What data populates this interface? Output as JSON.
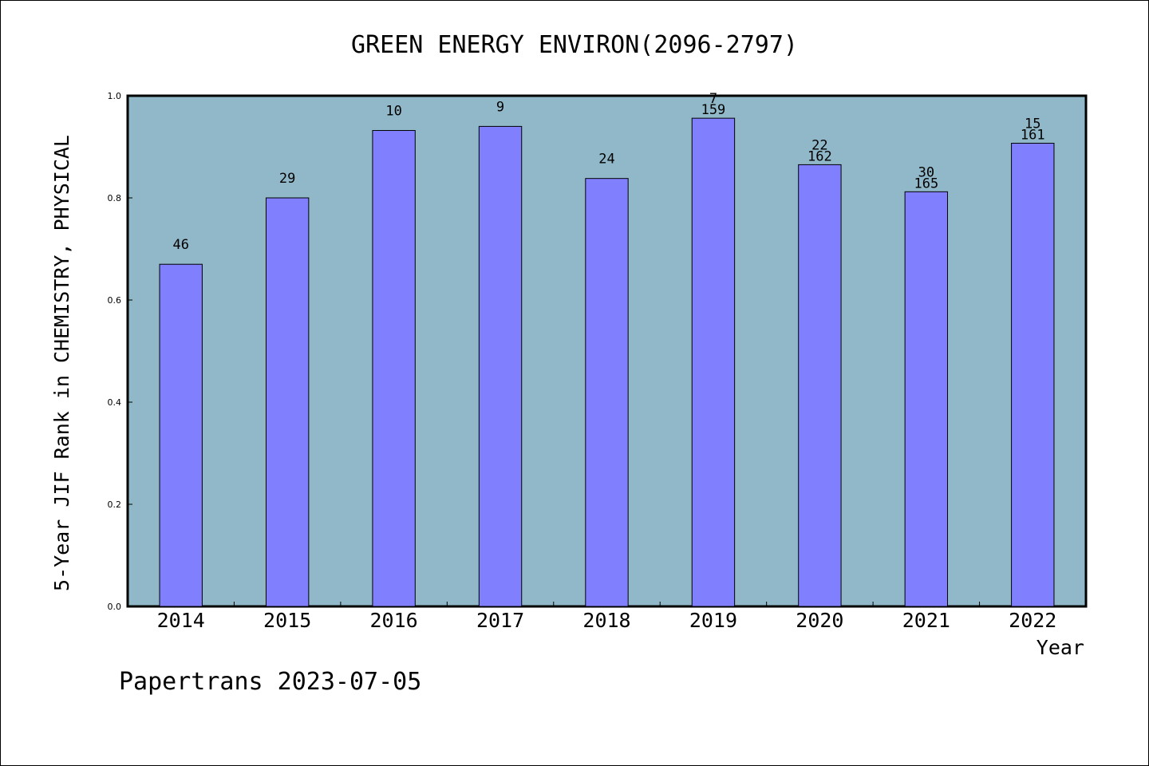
{
  "chart_data": {
    "type": "bar",
    "title": "GREEN ENERGY ENVIRON(2096-2797)",
    "xlabel": "Year",
    "ylabel": "5-Year JIF Rank in CHEMISTRY, PHYSICAL",
    "ylim": [
      0,
      1.0
    ],
    "yticks": [
      "0.0",
      "0.2",
      "0.4",
      "0.6",
      "0.8",
      "1.0"
    ],
    "categories": [
      "2014",
      "2015",
      "2016",
      "2017",
      "2018",
      "2019",
      "2020",
      "2021",
      "2022"
    ],
    "values": [
      0.67,
      0.8,
      0.932,
      0.94,
      0.838,
      0.956,
      0.865,
      0.812,
      0.907
    ],
    "rank_labels": [
      "46",
      "29",
      "10",
      "9",
      "24",
      "7",
      "22",
      "30",
      "15"
    ],
    "total_labels": [
      "",
      "",
      "",
      "",
      "",
      "159",
      "162",
      "165",
      "161"
    ],
    "grid": false,
    "legend": "none",
    "colors": {
      "plot_background": "#90b8c8",
      "bar_fill": "#8080ff",
      "bar_stroke": "#000000"
    }
  },
  "footer": {
    "watermark": "Papertrans 2023-07-05"
  }
}
